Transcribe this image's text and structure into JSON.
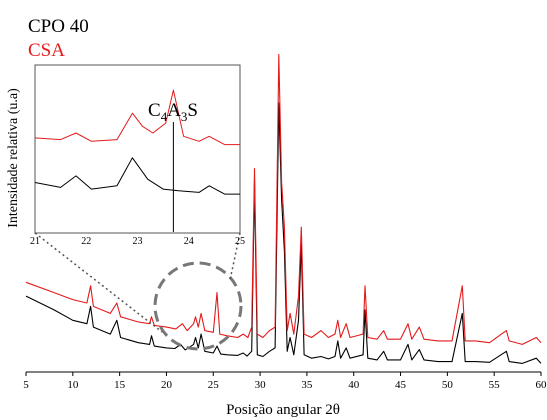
{
  "chart_data": [
    {
      "type": "line",
      "title": "",
      "xlabel": "Posição angular 2θ",
      "ylabel": "Intensidade relativa (u.a)",
      "xlim": [
        5,
        60
      ],
      "xticks": [
        5,
        10,
        15,
        20,
        25,
        30,
        35,
        40,
        45,
        50,
        55,
        60
      ],
      "y_ticks_shown": false,
      "legend": {
        "placement": "top-left",
        "entries": [
          {
            "name": "CPO 40",
            "color": "#000000"
          },
          {
            "name": "CSA",
            "color": "#e31a1c"
          }
        ]
      },
      "series": [
        {
          "name": "CPO 40",
          "color": "#000000",
          "points": [
            [
              5,
              0.22
            ],
            [
              8,
              0.18
            ],
            [
              10,
              0.15
            ],
            [
              11.5,
              0.14
            ],
            [
              11.9,
              0.19
            ],
            [
              12.2,
              0.13
            ],
            [
              14,
              0.11
            ],
            [
              14.7,
              0.15
            ],
            [
              15.1,
              0.1
            ],
            [
              17,
              0.085
            ],
            [
              18.2,
              0.08
            ],
            [
              18.4,
              0.105
            ],
            [
              18.7,
              0.075
            ],
            [
              20,
              0.07
            ],
            [
              20.9,
              0.068
            ],
            [
              21.5,
              0.08
            ],
            [
              22,
              0.064
            ],
            [
              22.9,
              0.08
            ],
            [
              23.1,
              0.1
            ],
            [
              23.4,
              0.07
            ],
            [
              23.7,
              0.11
            ],
            [
              24.1,
              0.06
            ],
            [
              25,
              0.055
            ],
            [
              25.4,
              0.075
            ],
            [
              25.8,
              0.052
            ],
            [
              26.5,
              0.05
            ],
            [
              27.6,
              0.048
            ],
            [
              28.2,
              0.055
            ],
            [
              28.6,
              0.046
            ],
            [
              29.1,
              0.06
            ],
            [
              29.4,
              0.55
            ],
            [
              29.7,
              0.05
            ],
            [
              30.3,
              0.045
            ],
            [
              31,
              0.06
            ],
            [
              31.6,
              0.07
            ],
            [
              32.0,
              0.78
            ],
            [
              32.3,
              0.5
            ],
            [
              32.6,
              0.35
            ],
            [
              32.9,
              0.06
            ],
            [
              33.2,
              0.1
            ],
            [
              33.6,
              0.05
            ],
            [
              34.1,
              0.15
            ],
            [
              34.4,
              0.37
            ],
            [
              34.7,
              0.05
            ],
            [
              35.5,
              0.04
            ],
            [
              36.5,
              0.045
            ],
            [
              37.3,
              0.038
            ],
            [
              38,
              0.045
            ],
            [
              38.3,
              0.09
            ],
            [
              38.6,
              0.04
            ],
            [
              39.2,
              0.07
            ],
            [
              39.6,
              0.04
            ],
            [
              41,
              0.05
            ],
            [
              41.2,
              0.18
            ],
            [
              41.5,
              0.04
            ],
            [
              42.5,
              0.035
            ],
            [
              43.2,
              0.06
            ],
            [
              43.6,
              0.035
            ],
            [
              45,
              0.035
            ],
            [
              45.8,
              0.08
            ],
            [
              46.2,
              0.035
            ],
            [
              47,
              0.065
            ],
            [
              47.5,
              0.035
            ],
            [
              49,
              0.03
            ],
            [
              50.5,
              0.03
            ],
            [
              51.6,
              0.17
            ],
            [
              51.9,
              0.03
            ],
            [
              53,
              0.03
            ],
            [
              54.5,
              0.028
            ],
            [
              56.3,
              0.06
            ],
            [
              56.6,
              0.03
            ],
            [
              58,
              0.025
            ],
            [
              59.5,
              0.04
            ],
            [
              60,
              0.025
            ]
          ]
        },
        {
          "name": "CSA",
          "color": "#e31a1c",
          "points": [
            [
              5,
              0.26
            ],
            [
              8,
              0.23
            ],
            [
              10,
              0.21
            ],
            [
              11.5,
              0.2
            ],
            [
              11.9,
              0.25
            ],
            [
              12.2,
              0.19
            ],
            [
              14,
              0.17
            ],
            [
              14.7,
              0.2
            ],
            [
              15.1,
              0.16
            ],
            [
              17,
              0.145
            ],
            [
              18.2,
              0.14
            ],
            [
              18.4,
              0.16
            ],
            [
              18.7,
              0.135
            ],
            [
              20,
              0.13
            ],
            [
              21,
              0.125
            ],
            [
              21.7,
              0.14
            ],
            [
              22.2,
              0.12
            ],
            [
              22.9,
              0.14
            ],
            [
              23.1,
              0.16
            ],
            [
              23.4,
              0.13
            ],
            [
              23.7,
              0.17
            ],
            [
              24.1,
              0.12
            ],
            [
              25,
              0.115
            ],
            [
              25.4,
              0.23
            ],
            [
              25.7,
              0.11
            ],
            [
              26.5,
              0.105
            ],
            [
              27.6,
              0.1
            ],
            [
              28.2,
              0.11
            ],
            [
              28.7,
              0.1
            ],
            [
              29.1,
              0.13
            ],
            [
              29.4,
              0.59
            ],
            [
              29.7,
              0.11
            ],
            [
              30.3,
              0.1
            ],
            [
              31,
              0.12
            ],
            [
              31.6,
              0.13
            ],
            [
              32.0,
              0.92
            ],
            [
              32.3,
              0.55
            ],
            [
              32.6,
              0.42
            ],
            [
              32.9,
              0.12
            ],
            [
              33.2,
              0.17
            ],
            [
              33.6,
              0.11
            ],
            [
              34.1,
              0.22
            ],
            [
              34.4,
              0.42
            ],
            [
              34.7,
              0.11
            ],
            [
              35.5,
              0.1
            ],
            [
              36.5,
              0.12
            ],
            [
              37.3,
              0.1
            ],
            [
              38,
              0.11
            ],
            [
              38.3,
              0.15
            ],
            [
              38.6,
              0.1
            ],
            [
              39.2,
              0.14
            ],
            [
              39.6,
              0.1
            ],
            [
              41,
              0.11
            ],
            [
              41.2,
              0.25
            ],
            [
              41.5,
              0.1
            ],
            [
              42.5,
              0.095
            ],
            [
              43.2,
              0.12
            ],
            [
              43.6,
              0.095
            ],
            [
              45,
              0.095
            ],
            [
              45.8,
              0.14
            ],
            [
              46.2,
              0.095
            ],
            [
              47,
              0.13
            ],
            [
              47.5,
              0.095
            ],
            [
              49,
              0.09
            ],
            [
              50.5,
              0.09
            ],
            [
              51.6,
              0.25
            ],
            [
              51.9,
              0.09
            ],
            [
              53,
              0.09
            ],
            [
              54.5,
              0.085
            ],
            [
              56.3,
              0.12
            ],
            [
              56.6,
              0.09
            ],
            [
              58,
              0.08
            ],
            [
              59.5,
              0.1
            ],
            [
              60,
              0.085
            ]
          ]
        }
      ]
    },
    {
      "type": "line",
      "title": "",
      "xlim": [
        21,
        25
      ],
      "xticks": [
        21,
        22,
        23,
        24,
        25
      ],
      "annotation": {
        "text_main": "C",
        "text_sub1": "4",
        "text_mid": "A",
        "text_sub2": "3",
        "text_end": "S",
        "x": 23.7
      },
      "series": [
        {
          "name": "CPO 40",
          "color": "#000000",
          "points": [
            [
              21,
              0.3
            ],
            [
              21.5,
              0.27
            ],
            [
              21.8,
              0.34
            ],
            [
              22.1,
              0.26
            ],
            [
              22.6,
              0.28
            ],
            [
              22.9,
              0.45
            ],
            [
              23.2,
              0.32
            ],
            [
              23.5,
              0.26
            ],
            [
              23.8,
              0.25
            ],
            [
              24.2,
              0.24
            ],
            [
              24.4,
              0.28
            ],
            [
              24.7,
              0.23
            ],
            [
              25,
              0.23
            ]
          ]
        },
        {
          "name": "CSA",
          "color": "#e31a1c",
          "points": [
            [
              21,
              0.57
            ],
            [
              21.5,
              0.56
            ],
            [
              21.8,
              0.6
            ],
            [
              22.1,
              0.55
            ],
            [
              22.6,
              0.56
            ],
            [
              22.9,
              0.72
            ],
            [
              23.1,
              0.64
            ],
            [
              23.3,
              0.6
            ],
            [
              23.55,
              0.66
            ],
            [
              23.7,
              0.86
            ],
            [
              23.9,
              0.58
            ],
            [
              24.2,
              0.55
            ],
            [
              24.4,
              0.58
            ],
            [
              24.7,
              0.53
            ],
            [
              25,
              0.53
            ]
          ]
        }
      ]
    }
  ]
}
